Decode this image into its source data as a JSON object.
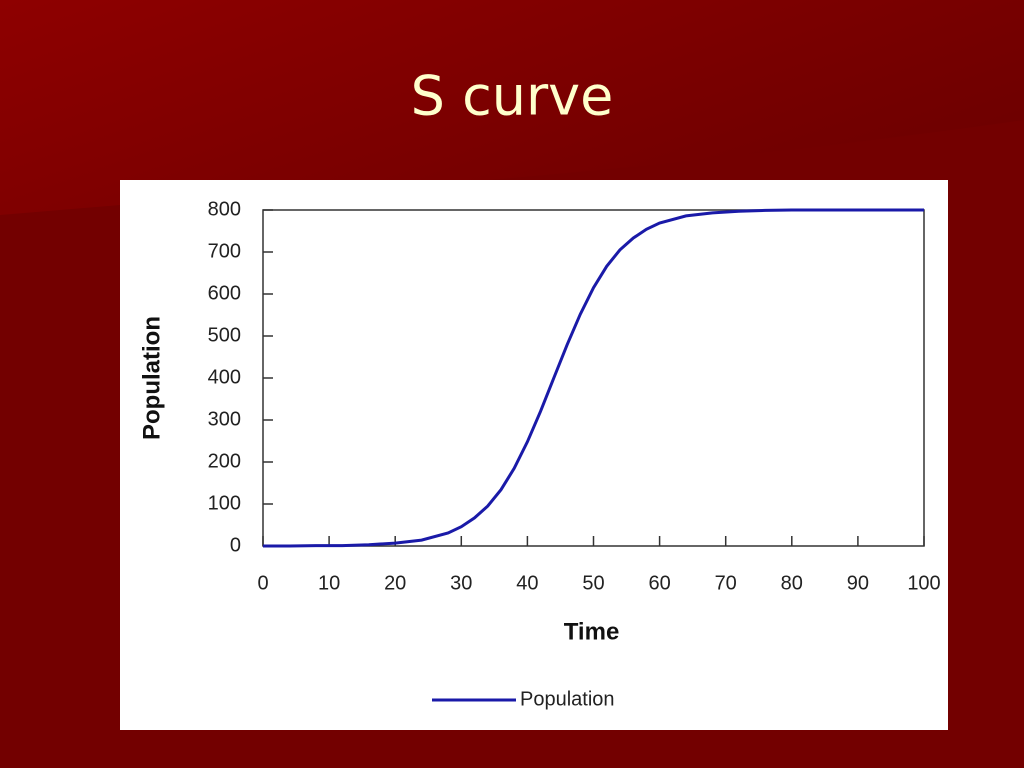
{
  "chart_data": {
    "type": "line",
    "title": "S curve",
    "x_label": "Time",
    "y_label": "Population",
    "x": [
      0,
      4,
      8,
      12,
      16,
      20,
      24,
      28,
      30,
      32,
      34,
      36,
      38,
      40,
      42,
      44,
      46,
      48,
      50,
      52,
      54,
      56,
      58,
      60,
      64,
      68,
      72,
      76,
      80,
      90,
      100
    ],
    "series": [
      {
        "name": "Population",
        "color": "#1a1aa8",
        "values": [
          0,
          0,
          1,
          1,
          3,
          7,
          14,
          31,
          46,
          67,
          95,
          134,
          185,
          248,
          321,
          400,
          479,
          552,
          615,
          666,
          705,
          733,
          754,
          769,
          786,
          793,
          797,
          799,
          800,
          800,
          800
        ]
      }
    ],
    "xlim": [
      0,
      100
    ],
    "ylim": [
      0,
      800
    ],
    "xticks": [
      0,
      10,
      20,
      30,
      40,
      50,
      60,
      70,
      80,
      90,
      100
    ],
    "yticks": [
      0,
      100,
      200,
      300,
      400,
      500,
      600,
      700,
      800
    ],
    "legend": "bottom"
  }
}
